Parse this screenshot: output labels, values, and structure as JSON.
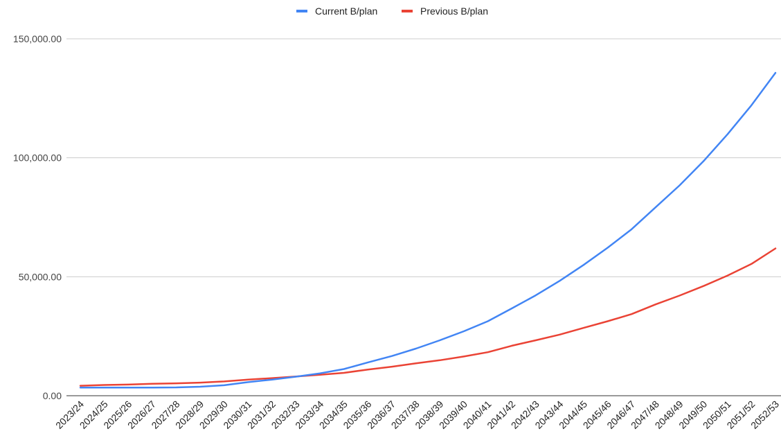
{
  "chart_data": {
    "type": "line",
    "title": "",
    "xlabel": "",
    "ylabel": "",
    "ylim": [
      0,
      150000
    ],
    "y_ticks": [
      0,
      50000,
      100000,
      150000
    ],
    "y_tick_labels": [
      "0.00",
      "50,000.00",
      "100,000.00",
      "150,000.00"
    ],
    "grid": "horizontal",
    "legend_position": "top",
    "categories": [
      "2023/24",
      "2024/25",
      "2025/26",
      "2026/27",
      "2027/28",
      "2028/29",
      "2029/30",
      "2030/31",
      "2031/32",
      "2032/33",
      "2033/34",
      "2034/35",
      "2035/36",
      "2036/37",
      "2037/38",
      "2038/39",
      "2039/40",
      "2040/41",
      "2041/42",
      "2042/43",
      "2043/44",
      "2044/45",
      "2045/46",
      "2046/47",
      "2047/48",
      "2048/49",
      "2049/50",
      "2050/51",
      "2051/52",
      "2052/53"
    ],
    "series": [
      {
        "name": "Current B/plan",
        "color": "#4285f4",
        "values": [
          3400,
          3450,
          3450,
          3450,
          3500,
          3800,
          4400,
          5700,
          6800,
          8000,
          9400,
          11200,
          14000,
          16700,
          19800,
          23300,
          27100,
          31300,
          36700,
          42200,
          48300,
          55000,
          62200,
          70000,
          79200,
          88400,
          98600,
          109900,
          122100,
          135700
        ]
      },
      {
        "name": "Previous B/plan",
        "color": "#ea4335",
        "values": [
          4200,
          4500,
          4700,
          5000,
          5200,
          5500,
          6000,
          6800,
          7400,
          8100,
          8800,
          9600,
          11000,
          12200,
          13600,
          14900,
          16500,
          18300,
          21000,
          23300,
          25700,
          28500,
          31300,
          34300,
          38400,
          42100,
          46100,
          50500,
          55400,
          61900
        ]
      }
    ]
  }
}
